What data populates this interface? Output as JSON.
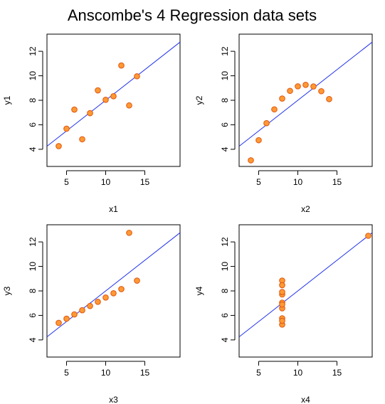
{
  "title": "Anscombe's 4 Regression data sets",
  "colors": {
    "point_fill": "#ff9933",
    "point_stroke": "#dd5511",
    "line": "#2233ee"
  },
  "chart_data": [
    {
      "type": "scatter",
      "xlabel": "x1",
      "ylabel": "y1",
      "xlim": [
        2.5,
        19.5
      ],
      "ylim": [
        2.6,
        13.4
      ],
      "xticks": [
        5,
        10,
        15
      ],
      "yticks": [
        4,
        6,
        8,
        10,
        12
      ],
      "x": [
        10,
        8,
        13,
        9,
        11,
        14,
        6,
        4,
        12,
        7,
        5
      ],
      "y": [
        8.04,
        6.95,
        7.58,
        8.81,
        8.33,
        9.96,
        7.24,
        4.26,
        10.84,
        4.82,
        5.68
      ],
      "fit": {
        "intercept": 3.0,
        "slope": 0.5
      }
    },
    {
      "type": "scatter",
      "xlabel": "x2",
      "ylabel": "y2",
      "xlim": [
        2.5,
        19.5
      ],
      "ylim": [
        2.6,
        13.4
      ],
      "xticks": [
        5,
        10,
        15
      ],
      "yticks": [
        4,
        6,
        8,
        10,
        12
      ],
      "x": [
        10,
        8,
        13,
        9,
        11,
        14,
        6,
        4,
        12,
        7,
        5
      ],
      "y": [
        9.14,
        8.14,
        8.74,
        8.77,
        9.26,
        8.1,
        6.13,
        3.1,
        9.13,
        7.26,
        4.74
      ],
      "fit": {
        "intercept": 3.0,
        "slope": 0.5
      }
    },
    {
      "type": "scatter",
      "xlabel": "x3",
      "ylabel": "y3",
      "xlim": [
        2.5,
        19.5
      ],
      "ylim": [
        2.6,
        13.4
      ],
      "xticks": [
        5,
        10,
        15
      ],
      "yticks": [
        4,
        6,
        8,
        10,
        12
      ],
      "x": [
        10,
        8,
        13,
        9,
        11,
        14,
        6,
        4,
        12,
        7,
        5
      ],
      "y": [
        7.46,
        6.77,
        12.74,
        7.11,
        7.81,
        8.84,
        6.08,
        5.39,
        8.15,
        6.42,
        5.73
      ],
      "fit": {
        "intercept": 3.0,
        "slope": 0.5
      }
    },
    {
      "type": "scatter",
      "xlabel": "x4",
      "ylabel": "y4",
      "xlim": [
        2.5,
        19.5
      ],
      "ylim": [
        2.6,
        13.4
      ],
      "xticks": [
        5,
        10,
        15
      ],
      "yticks": [
        4,
        6,
        8,
        10,
        12
      ],
      "x": [
        8,
        8,
        8,
        8,
        8,
        8,
        8,
        19,
        8,
        8,
        8
      ],
      "y": [
        6.58,
        5.76,
        7.71,
        8.84,
        8.47,
        7.04,
        5.25,
        12.5,
        5.56,
        7.91,
        6.89
      ],
      "fit": {
        "intercept": 3.0,
        "slope": 0.5
      }
    }
  ]
}
